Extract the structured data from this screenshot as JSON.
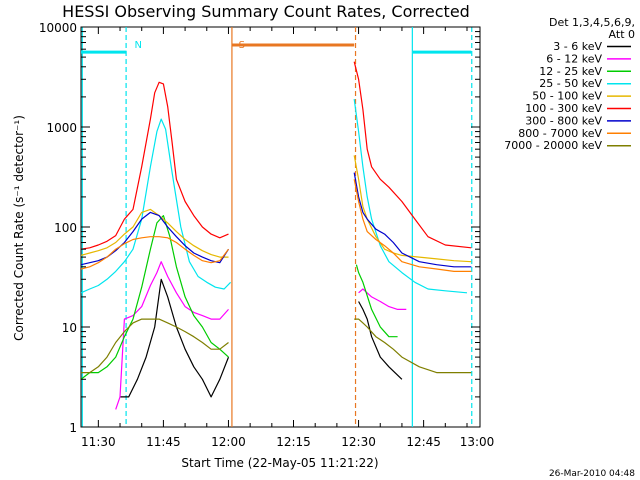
{
  "chart_data": {
    "type": "line",
    "title": "HESSI Observing Summary Count Rates, Corrected",
    "xlabel": "Start Time (22-May-05 11:21:22)",
    "ylabel": "Corrected Count Rate (s⁻¹ detector⁻¹)",
    "ylog": true,
    "ylim": [
      1,
      10000
    ],
    "xlim": [
      26,
      118
    ],
    "x_tick_labels": [
      "11:30",
      "11:45",
      "12:00",
      "12:15",
      "12:30",
      "12:45",
      "13:00"
    ],
    "x_tick_values": [
      30,
      45,
      60,
      75,
      90,
      105,
      120
    ],
    "y_tick_labels": [
      "1",
      "10",
      "100",
      "1000",
      "10000"
    ],
    "y_tick_values": [
      1,
      10,
      100,
      1000,
      10000
    ],
    "legend_header": [
      "Det 1,3,4,5,6,9,",
      "Att 0"
    ],
    "legend_position": "right-outside",
    "annotations": [
      {
        "text": "N",
        "x": 36.5,
        "color": "#00e5ee"
      },
      {
        "text": "S",
        "x": 60.5,
        "color": "#e87722"
      }
    ],
    "flag_bars": [
      {
        "from": 26,
        "to": 36.5,
        "y": 5600,
        "color": "#00e5ee"
      },
      {
        "from": 60.8,
        "to": 89,
        "y": 6600,
        "color": "#e87722"
      },
      {
        "from": 102.5,
        "to": 116,
        "y": 5600,
        "color": "#00e5ee"
      }
    ],
    "vlines": [
      {
        "x": 26.3,
        "color": "#00e5ee",
        "dash": false
      },
      {
        "x": 36.4,
        "color": "#00e5ee",
        "dash": true
      },
      {
        "x": 60.8,
        "color": "#e87722",
        "dash": false
      },
      {
        "x": 89.3,
        "color": "#e87722",
        "dash": true
      },
      {
        "x": 102.4,
        "color": "#00e5ee",
        "dash": false
      },
      {
        "x": 116.1,
        "color": "#00e5ee",
        "dash": true
      }
    ],
    "series": [
      {
        "name": "3 - 6 keV",
        "color": "#000000",
        "seg1": {
          "x": [
            29,
            33,
            35,
            37,
            39,
            41,
            43,
            44.5,
            46,
            48,
            50,
            52,
            54,
            56,
            58,
            60
          ],
          "y": [
            null,
            null,
            2,
            2,
            3,
            5,
            10,
            30,
            20,
            10,
            6,
            4,
            3,
            2,
            3,
            5
          ]
        },
        "seg2": {
          "x": [
            90,
            91,
            92,
            93,
            95,
            97,
            100,
            103
          ],
          "y": [
            18,
            15,
            12,
            8,
            5,
            4,
            3,
            null
          ]
        }
      },
      {
        "name": "6 - 12 keV",
        "color": "#ff00ff",
        "seg1": {
          "x": [
            34,
            35,
            36,
            38,
            40,
            42,
            43.5,
            44.5,
            46,
            48,
            50,
            52,
            54,
            56,
            58,
            60
          ],
          "y": [
            1.5,
            2,
            12,
            13,
            16,
            26,
            35,
            45,
            32,
            22,
            16,
            14,
            13,
            12,
            12,
            15
          ]
        },
        "seg2": {
          "x": [
            90,
            91,
            93,
            95,
            97,
            99,
            101,
            103
          ],
          "y": [
            22,
            24,
            20,
            18,
            16,
            15,
            15,
            null
          ]
        }
      },
      {
        "name": "12 - 25 keV",
        "color": "#00cc00",
        "seg1": {
          "x": [
            26,
            28,
            30,
            32,
            34,
            36,
            38,
            40,
            42,
            43.5,
            45,
            46.5,
            48,
            50,
            52,
            54,
            56,
            58,
            60
          ],
          "y": [
            3,
            3.5,
            3.5,
            4,
            5,
            8,
            12,
            25,
            60,
            110,
            130,
            80,
            40,
            20,
            13,
            10,
            7,
            6,
            5
          ]
        },
        "seg2": {
          "x": [
            89.5,
            90,
            91,
            93,
            95,
            97,
            99
          ],
          "y": [
            42,
            35,
            28,
            15,
            10,
            8,
            8
          ]
        }
      },
      {
        "name": "25 - 50 keV",
        "color": "#00e5ee",
        "seg1": {
          "x": [
            26,
            28,
            30,
            32,
            34,
            36,
            38,
            40,
            42,
            43.5,
            44.5,
            45.5,
            47,
            49,
            51,
            53,
            55,
            57,
            59,
            60.5
          ],
          "y": [
            22,
            24,
            26,
            30,
            36,
            45,
            60,
            120,
            400,
            900,
            1200,
            950,
            350,
            100,
            45,
            32,
            28,
            25,
            24,
            28
          ]
        },
        "seg2": {
          "x": [
            89,
            90,
            91,
            92,
            93,
            95,
            97,
            100,
            103,
            106,
            110,
            115
          ],
          "y": [
            1900,
            900,
            400,
            200,
            120,
            65,
            45,
            35,
            28,
            24,
            23,
            22
          ]
        }
      },
      {
        "name": "50 - 100 keV",
        "color": "#e6b800",
        "seg1": {
          "x": [
            26,
            28,
            30,
            32,
            34,
            36,
            38,
            40,
            42,
            44,
            46,
            48,
            50,
            52,
            54,
            56,
            58,
            60
          ],
          "y": [
            52,
            55,
            58,
            62,
            70,
            85,
            100,
            140,
            150,
            130,
            110,
            90,
            75,
            65,
            58,
            53,
            50,
            50
          ]
        },
        "seg2": {
          "x": [
            89,
            90,
            91,
            92,
            94,
            96,
            98,
            100,
            104,
            108,
            112,
            116
          ],
          "y": [
            520,
            300,
            160,
            120,
            80,
            60,
            55,
            52,
            50,
            48,
            46,
            45
          ]
        }
      },
      {
        "name": "100 - 300 keV",
        "color": "#ff0000",
        "seg1": {
          "x": [
            26,
            28,
            30,
            32,
            34,
            36,
            38,
            40,
            42,
            43,
            44,
            45,
            46,
            47,
            48,
            50,
            52,
            54,
            56,
            58,
            60
          ],
          "y": [
            60,
            62,
            66,
            72,
            82,
            120,
            150,
            400,
            1200,
            2200,
            2800,
            2700,
            1600,
            700,
            300,
            180,
            130,
            100,
            85,
            78,
            85
          ]
        },
        "seg2": {
          "x": [
            89,
            90,
            91,
            92,
            93,
            95,
            97,
            100,
            103,
            106,
            110,
            116
          ],
          "y": [
            4500,
            3000,
            1500,
            600,
            400,
            300,
            250,
            180,
            120,
            80,
            66,
            62
          ]
        }
      },
      {
        "name": "300 - 800 keV",
        "color": "#0000cc",
        "seg1": {
          "x": [
            26,
            28,
            30,
            32,
            34,
            36,
            38,
            40,
            42,
            44,
            46,
            48,
            50,
            52,
            54,
            56,
            58,
            60
          ],
          "y": [
            42,
            44,
            46,
            50,
            58,
            70,
            90,
            120,
            140,
            130,
            100,
            80,
            65,
            55,
            50,
            46,
            44,
            60
          ]
        },
        "seg2": {
          "x": [
            89,
            90,
            91,
            92,
            94,
            96,
            98,
            100,
            104,
            108,
            112,
            116
          ],
          "y": [
            350,
            200,
            140,
            120,
            95,
            85,
            70,
            55,
            45,
            42,
            40,
            40
          ]
        }
      },
      {
        "name": "800 - 7000 keV",
        "color": "#ff7f00",
        "seg1": {
          "x": [
            26,
            28,
            30,
            32,
            34,
            36,
            38,
            40,
            42,
            44,
            46,
            48,
            50,
            52,
            54,
            56,
            58,
            60
          ],
          "y": [
            38,
            40,
            44,
            50,
            60,
            68,
            75,
            78,
            80,
            80,
            78,
            70,
            60,
            52,
            46,
            44,
            46,
            60
          ]
        },
        "seg2": {
          "x": [
            89,
            90,
            91,
            92,
            94,
            96,
            98,
            100,
            104,
            108,
            112,
            116
          ],
          "y": [
            300,
            180,
            120,
            90,
            75,
            65,
            55,
            45,
            40,
            38,
            36,
            36
          ]
        }
      },
      {
        "name": "7000 - 20000 keV",
        "color": "#7f7f00",
        "seg1": {
          "x": [
            26,
            28,
            30,
            32,
            34,
            36,
            38,
            40,
            42,
            44,
            46,
            48,
            50,
            52,
            54,
            56,
            58,
            60
          ],
          "y": [
            3.5,
            3.5,
            4,
            5,
            7,
            9,
            11,
            12,
            12,
            12,
            11,
            10,
            9,
            8,
            7,
            6,
            6,
            7
          ]
        },
        "seg2": {
          "x": [
            89,
            90,
            91,
            92,
            94,
            96,
            98,
            100,
            104,
            108,
            112,
            116
          ],
          "y": [
            12,
            12,
            11,
            10,
            8,
            7,
            6,
            5,
            4,
            3.5,
            3.5,
            3.5
          ]
        }
      }
    ]
  },
  "footer_stamp": "26-Mar-2010 04:48"
}
